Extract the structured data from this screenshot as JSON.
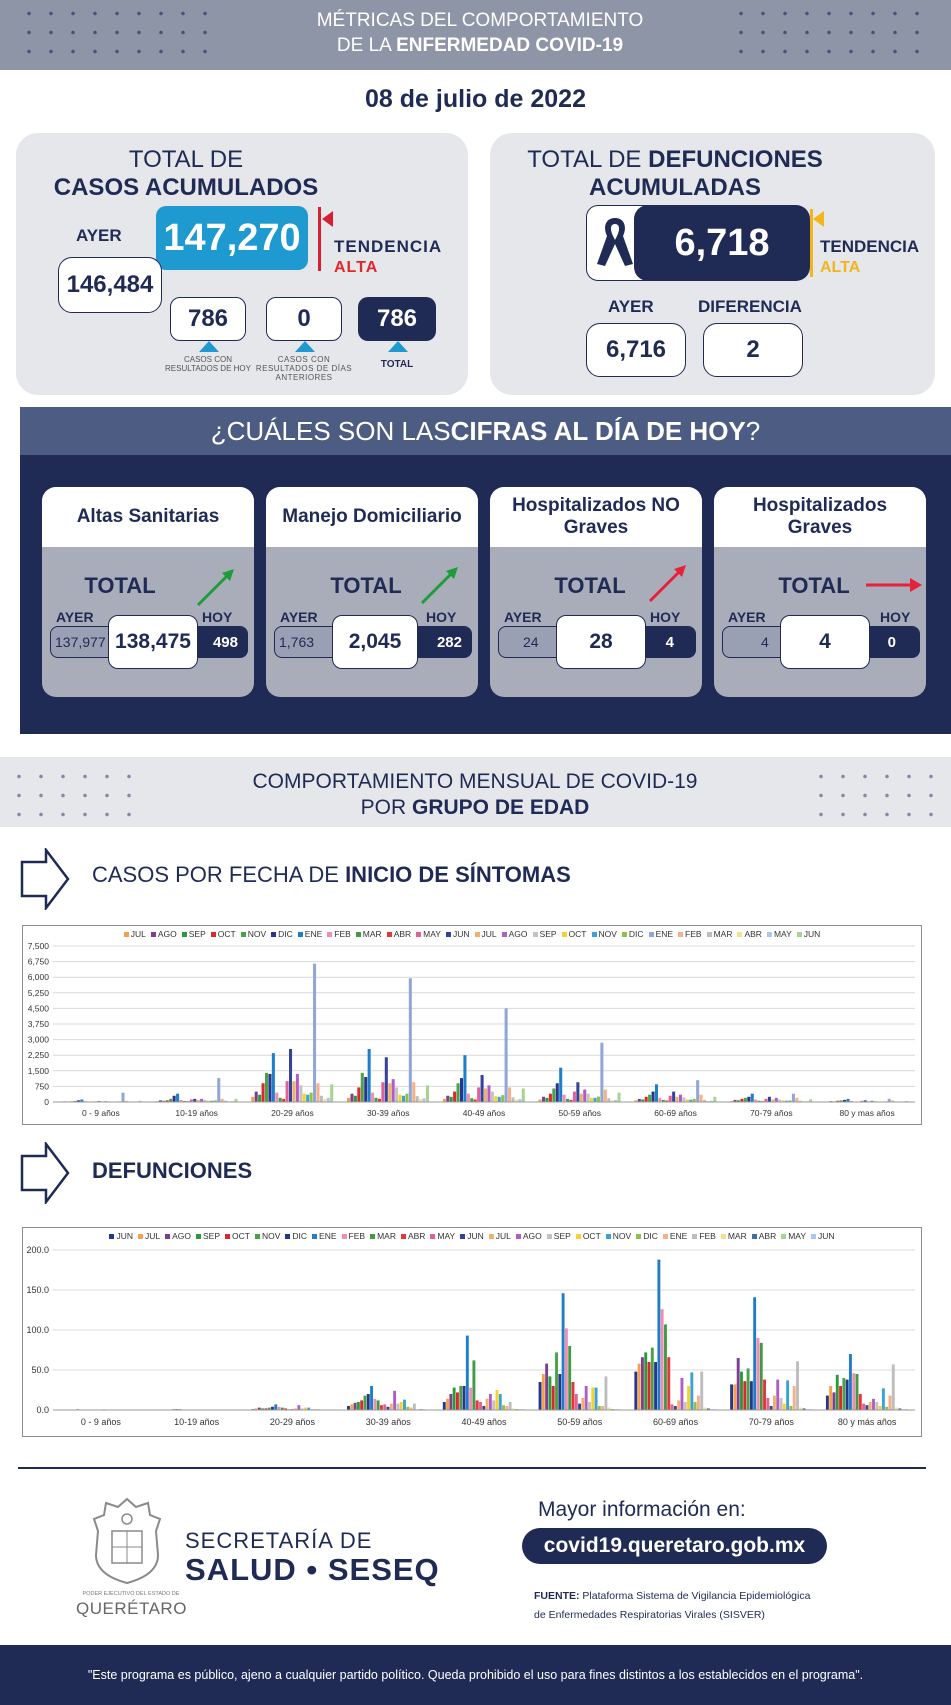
{
  "header": {
    "title_line1": "MÉTRICAS DEL COMPORTAMIENTO",
    "title_line2_pre": "DE LA ",
    "title_line2_bold": "ENFERMEDAD COVID-19"
  },
  "date": "08 de julio de 2022",
  "cases": {
    "title_line1": "TOTAL DE",
    "title_line2": "CASOS ACUMULADOS",
    "total": "147,270",
    "yesterday_label": "AYER",
    "yesterday": "146,484",
    "trend_label": "TENDENCIA",
    "trend_value": "ALTA",
    "new_today": "786",
    "new_today_caption": "CASOS CON RESULTADOS DE HOY",
    "previous": "0",
    "previous_caption": "CASOS CON RESULTADOS DE DÍAS ANTERIORES",
    "sum": "786",
    "sum_caption": "TOTAL"
  },
  "deaths": {
    "title_pre": "TOTAL DE ",
    "title_bold1": "DEFUNCIONES",
    "title_bold2": "ACUMULADAS",
    "total": "6,718",
    "trend_label": "TENDENCIA",
    "trend_value": "ALTA",
    "yesterday_label": "AYER",
    "yesterday": "6,716",
    "diff_label": "DIFERENCIA",
    "diff": "2"
  },
  "today": {
    "title_pre": "¿CUÁLES SON LAS ",
    "title_bold": "CIFRAS AL DÍA DE HOY",
    "title_post": "?",
    "total_label": "TOTAL",
    "yesterday_label": "AYER",
    "today_label": "HOY",
    "panels": [
      {
        "title": "Altas Sanitarias",
        "yesterday": "137,977",
        "total": "138,475",
        "today": "498",
        "trend": "up",
        "trend_color": "#1e9b3a"
      },
      {
        "title": "Manejo Domiciliario",
        "yesterday": "1,763",
        "total": "2,045",
        "today": "282",
        "trend": "up",
        "trend_color": "#1e9b3a"
      },
      {
        "title": "Hospitalizados NO Graves",
        "yesterday": "24",
        "total": "28",
        "today": "4",
        "trend": "up",
        "trend_color": "#e8213a"
      },
      {
        "title": "Hospitalizados Graves",
        "yesterday": "4",
        "total": "4",
        "today": "0",
        "trend": "flat",
        "trend_color": "#e8213a"
      }
    ]
  },
  "monthly": {
    "title_line1": "COMPORTAMIENTO MENSUAL DE COVID-19",
    "title_line2_pre": "POR ",
    "title_line2_bold": "GRUPO DE EDAD"
  },
  "cases_section": {
    "title_pre": "CASOS POR FECHA DE ",
    "title_bold": "INICIO  DE SÍNTOMAS"
  },
  "deaths_section": {
    "title": "DEFUNCIONES"
  },
  "chart_data": [
    {
      "type": "bar",
      "title": "",
      "categories": [
        "0 - 9 años",
        "10-19 años",
        "20-29 años",
        "30-39 años",
        "40-49 años",
        "50-59 años",
        "60-69 años",
        "70-79 años",
        "80 y mas años"
      ],
      "ylim": [
        0,
        7500
      ],
      "yticks": [
        "0",
        "750",
        "1,500",
        "2,250",
        "3,000",
        "3,750",
        "4,500",
        "5,250",
        "6,000",
        "6,750",
        "7,500"
      ],
      "legend_position": "top",
      "grid": true,
      "series": [
        {
          "name": "JUL",
          "color": "#f4a14a",
          "values": [
            20,
            40,
            250,
            200,
            150,
            120,
            80,
            50,
            20
          ]
        },
        {
          "name": "AGO",
          "color": "#7a3f8f",
          "values": [
            30,
            80,
            500,
            400,
            300,
            250,
            150,
            100,
            40
          ]
        },
        {
          "name": "SEP",
          "color": "#2a9a3a",
          "values": [
            25,
            60,
            350,
            300,
            250,
            200,
            120,
            80,
            30
          ]
        },
        {
          "name": "OCT",
          "color": "#e0262b",
          "values": [
            30,
            80,
            900,
            700,
            500,
            400,
            250,
            150,
            60
          ]
        },
        {
          "name": "NOV",
          "color": "#4aa14a",
          "values": [
            50,
            150,
            1400,
            1400,
            900,
            650,
            350,
            200,
            80
          ]
        },
        {
          "name": "DIC",
          "color": "#27368a",
          "values": [
            80,
            300,
            1350,
            1200,
            1150,
            900,
            500,
            250,
            100
          ]
        },
        {
          "name": "ENE",
          "color": "#1f7ec9",
          "values": [
            120,
            400,
            2350,
            2550,
            2250,
            1650,
            850,
            400,
            150
          ]
        },
        {
          "name": "FEB",
          "color": "#f28cb1",
          "values": [
            40,
            100,
            450,
            450,
            400,
            350,
            200,
            120,
            50
          ]
        },
        {
          "name": "MAR",
          "color": "#3f9b45",
          "values": [
            20,
            50,
            200,
            200,
            180,
            150,
            100,
            60,
            20
          ]
        },
        {
          "name": "ABR",
          "color": "#e8343a",
          "values": [
            15,
            40,
            150,
            150,
            120,
            100,
            70,
            40,
            15
          ]
        },
        {
          "name": "MAY",
          "color": "#e0609a",
          "values": [
            30,
            120,
            1000,
            950,
            700,
            500,
            300,
            150,
            50
          ]
        },
        {
          "name": "JUN",
          "color": "#33439a",
          "values": [
            40,
            150,
            2550,
            2150,
            1300,
            950,
            500,
            250,
            80
          ]
        },
        {
          "name": "JUL",
          "color": "#f2b168",
          "values": [
            30,
            100,
            1000,
            900,
            650,
            400,
            250,
            120,
            40
          ]
        },
        {
          "name": "AGO",
          "color": "#b05ec7",
          "values": [
            40,
            150,
            1350,
            1100,
            800,
            600,
            350,
            200,
            60
          ]
        },
        {
          "name": "SEP",
          "color": "#c3c3c3",
          "values": [
            30,
            100,
            800,
            700,
            500,
            400,
            220,
            120,
            40
          ]
        },
        {
          "name": "OCT",
          "color": "#f7d22b",
          "values": [
            20,
            60,
            400,
            350,
            280,
            200,
            120,
            70,
            25
          ]
        },
        {
          "name": "NOV",
          "color": "#3da1d6",
          "values": [
            20,
            60,
            350,
            300,
            250,
            200,
            110,
            60,
            20
          ]
        },
        {
          "name": "DIC",
          "color": "#8bc34a",
          "values": [
            30,
            80,
            450,
            400,
            330,
            260,
            150,
            80,
            30
          ]
        },
        {
          "name": "ENE",
          "color": "#8fa6d6",
          "values": [
            450,
            1150,
            6650,
            5950,
            4500,
            2850,
            1050,
            400,
            150
          ]
        },
        {
          "name": "FEB",
          "color": "#f5b08a",
          "values": [
            50,
            150,
            900,
            950,
            700,
            600,
            350,
            200,
            70
          ]
        },
        {
          "name": "MAR",
          "color": "#bdbdbd",
          "values": [
            20,
            60,
            300,
            280,
            220,
            180,
            100,
            60,
            20
          ]
        },
        {
          "name": "ABR",
          "color": "#f6e08a",
          "values": [
            10,
            30,
            150,
            140,
            110,
            80,
            50,
            30,
            10
          ]
        },
        {
          "name": "MAY",
          "color": "#a9c8ec",
          "values": [
            15,
            40,
            200,
            180,
            140,
            100,
            60,
            35,
            12
          ]
        },
        {
          "name": "JUN",
          "color": "#a7d48f",
          "values": [
            60,
            150,
            850,
            800,
            650,
            450,
            250,
            130,
            45
          ]
        }
      ]
    },
    {
      "type": "bar",
      "title": "",
      "categories": [
        "0 - 9 años",
        "10-19 años",
        "20-29 años",
        "30-39 años",
        "40-49 años",
        "50-59 años",
        "60-69 años",
        "70-79 años",
        "80 y más años"
      ],
      "ylim": [
        0,
        200
      ],
      "yticks": [
        "0.0",
        "50.0",
        "100.0",
        "150.0",
        "200.0"
      ],
      "legend_position": "top",
      "grid": true,
      "series": [
        {
          "name": "JUN",
          "color": "#27368a",
          "values": [
            0,
            0,
            1,
            5,
            10,
            35,
            48,
            32,
            18
          ]
        },
        {
          "name": "JUL",
          "color": "#f4a14a",
          "values": [
            0,
            0,
            2,
            7,
            14,
            45,
            58,
            32,
            30
          ]
        },
        {
          "name": "AGO",
          "color": "#7a3f8f",
          "values": [
            0,
            0,
            3,
            9,
            20,
            58,
            66,
            65,
            22
          ]
        },
        {
          "name": "SEP",
          "color": "#2a9a3a",
          "values": [
            0,
            0,
            2,
            10,
            28,
            42,
            72,
            48,
            44
          ]
        },
        {
          "name": "OCT",
          "color": "#e0262b",
          "values": [
            0,
            0,
            2,
            12,
            22,
            30,
            60,
            36,
            30
          ]
        },
        {
          "name": "NOV",
          "color": "#4aa14a",
          "values": [
            1,
            1,
            3,
            18,
            30,
            72,
            78,
            52,
            40
          ]
        },
        {
          "name": "DIC",
          "color": "#27368a",
          "values": [
            0,
            1,
            4,
            20,
            30,
            45,
            60,
            36,
            38
          ]
        },
        {
          "name": "ENE",
          "color": "#1f7ec9",
          "values": [
            0,
            1,
            7,
            30,
            93,
            146,
            188,
            141,
            70
          ]
        },
        {
          "name": "FEB",
          "color": "#f28cb1",
          "values": [
            0,
            0,
            4,
            14,
            28,
            102,
            126,
            90,
            46
          ]
        },
        {
          "name": "MAR",
          "color": "#3f9b45",
          "values": [
            0,
            0,
            3,
            12,
            62,
            80,
            107,
            84,
            45
          ]
        },
        {
          "name": "ABR",
          "color": "#e8343a",
          "values": [
            0,
            0,
            2,
            6,
            12,
            35,
            66,
            38,
            20
          ]
        },
        {
          "name": "MAY",
          "color": "#e0609a",
          "values": [
            0,
            0,
            1,
            7,
            10,
            20,
            7,
            15,
            8
          ]
        },
        {
          "name": "JUN",
          "color": "#33439a",
          "values": [
            0,
            0,
            1,
            4,
            5,
            8,
            5,
            5,
            6
          ]
        },
        {
          "name": "JUL",
          "color": "#f2b168",
          "values": [
            1,
            0,
            2,
            8,
            14,
            15,
            12,
            18,
            10
          ]
        },
        {
          "name": "AGO",
          "color": "#b05ec7",
          "values": [
            0,
            0,
            6,
            24,
            20,
            30,
            40,
            38,
            14
          ]
        },
        {
          "name": "SEP",
          "color": "#c3c3c3",
          "values": [
            0,
            0,
            2,
            8,
            12,
            10,
            10,
            15,
            10
          ]
        },
        {
          "name": "OCT",
          "color": "#f7d22b",
          "values": [
            0,
            0,
            3,
            10,
            25,
            28,
            30,
            8,
            5
          ]
        },
        {
          "name": "NOV",
          "color": "#3da1d6",
          "values": [
            0,
            0,
            3,
            13,
            20,
            28,
            47,
            37,
            27
          ]
        },
        {
          "name": "DIC",
          "color": "#8bc34a",
          "values": [
            0,
            0,
            1,
            4,
            6,
            5,
            10,
            5,
            4
          ]
        },
        {
          "name": "ENE",
          "color": "#f5b08a",
          "values": [
            0,
            0,
            1,
            3,
            5,
            5,
            18,
            30,
            18
          ]
        },
        {
          "name": "FEB",
          "color": "#bdbdbd",
          "values": [
            0,
            0,
            1,
            8,
            10,
            42,
            48,
            61,
            57
          ]
        },
        {
          "name": "MAR",
          "color": "#f6e08a",
          "values": [
            0,
            0,
            0,
            1,
            2,
            3,
            3,
            3,
            3
          ]
        },
        {
          "name": "ABR",
          "color": "#3d6ea8",
          "values": [
            0,
            0,
            0,
            1,
            1,
            1,
            2,
            2,
            2
          ]
        },
        {
          "name": "MAY",
          "color": "#a7d48f",
          "values": [
            0,
            0,
            0,
            1,
            1,
            1,
            1,
            1,
            1
          ]
        },
        {
          "name": "JUN",
          "color": "#a9c8ec",
          "values": [
            0,
            0,
            0,
            0,
            1,
            1,
            1,
            1,
            1
          ]
        }
      ]
    }
  ],
  "footer": {
    "state_small": "PODER EJECUTIVO DEL ESTADO DE",
    "state_name": "QUERÉTARO",
    "ministry_line1": "SECRETARÍA DE",
    "ministry_line2": "SALUD • SESEQ",
    "more_info": "Mayor información en:",
    "url": "covid19.queretaro.gob.mx",
    "source_label": "FUENTE:",
    "source_text": "Plataforma Sistema  de Vigilancia Epidemiológica",
    "source_text2": "de Enfermedades Respiratorias Virales (SISVER)",
    "disclaimer": "\"Este programa es público, ajeno a cualquier partido político. Queda prohibido el uso para fines distintos a los establecidos en el programa\"."
  }
}
